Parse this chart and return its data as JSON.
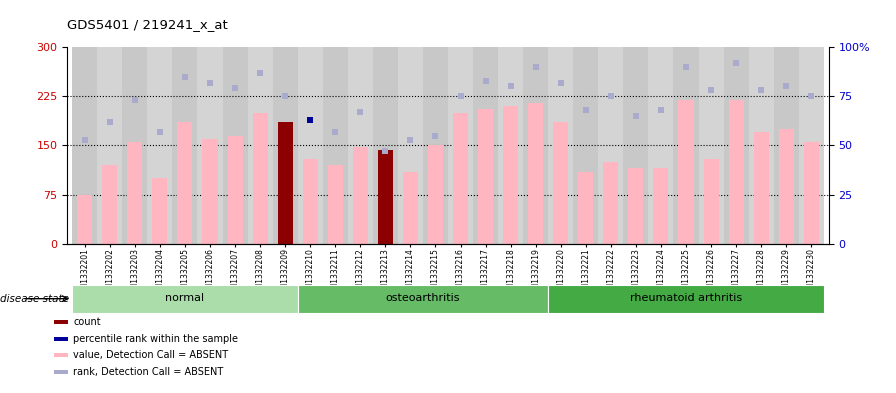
{
  "title": "GDS5401 / 219241_x_at",
  "samples": [
    "GSM1332201",
    "GSM1332202",
    "GSM1332203",
    "GSM1332204",
    "GSM1332205",
    "GSM1332206",
    "GSM1332207",
    "GSM1332208",
    "GSM1332209",
    "GSM1332210",
    "GSM1332211",
    "GSM1332212",
    "GSM1332213",
    "GSM1332214",
    "GSM1332215",
    "GSM1332216",
    "GSM1332217",
    "GSM1332218",
    "GSM1332219",
    "GSM1332220",
    "GSM1332221",
    "GSM1332222",
    "GSM1332223",
    "GSM1332224",
    "GSM1332225",
    "GSM1332226",
    "GSM1332227",
    "GSM1332228",
    "GSM1332229",
    "GSM1332230"
  ],
  "bar_values": [
    75,
    120,
    155,
    100,
    185,
    160,
    165,
    200,
    185,
    130,
    120,
    148,
    143,
    110,
    150,
    200,
    205,
    210,
    215,
    185,
    110,
    125,
    115,
    115,
    220,
    130,
    220,
    170,
    175,
    155
  ],
  "bar_color_types": [
    "absent",
    "absent",
    "absent",
    "absent",
    "absent",
    "absent",
    "absent",
    "absent",
    "count",
    "absent",
    "absent",
    "absent",
    "count",
    "absent",
    "absent",
    "absent",
    "absent",
    "absent",
    "absent",
    "absent",
    "absent",
    "absent",
    "absent",
    "absent",
    "absent",
    "absent",
    "absent",
    "absent",
    "absent",
    "absent"
  ],
  "rank_values": [
    53,
    62,
    73,
    57,
    85,
    82,
    79,
    87,
    75,
    63,
    57,
    67,
    47,
    53,
    55,
    75,
    83,
    80,
    90,
    82,
    68,
    75,
    65,
    68,
    90,
    78,
    92,
    78,
    80,
    75
  ],
  "rank_color_types": [
    "light",
    "light",
    "light",
    "light",
    "light",
    "light",
    "light",
    "light",
    "light",
    "dark",
    "light",
    "light",
    "light",
    "light",
    "light",
    "light",
    "light",
    "light",
    "light",
    "light",
    "light",
    "light",
    "light",
    "light",
    "light",
    "light",
    "light",
    "light",
    "light",
    "light"
  ],
  "groups": [
    {
      "label": "normal",
      "start": 0,
      "end": 9,
      "color": "#aaddaa"
    },
    {
      "label": "osteoarthritis",
      "start": 9,
      "end": 19,
      "color": "#66bb66"
    },
    {
      "label": "rheumatoid arthritis",
      "start": 19,
      "end": 30,
      "color": "#44aa44"
    }
  ],
  "ylim_left": [
    0,
    300
  ],
  "ylim_right": [
    0,
    100
  ],
  "yticks_left": [
    0,
    75,
    150,
    225,
    300
  ],
  "yticks_right": [
    0,
    25,
    50,
    75,
    100
  ],
  "hlines": [
    75,
    150,
    225
  ],
  "bar_color_absent": "#FFB6C1",
  "bar_color_count": "#8B0000",
  "rank_color_light": "#AAAACC",
  "rank_color_dark": "#000099",
  "disease_state_label": "disease state",
  "legend_items": [
    {
      "color": "#8B0000",
      "label": "count"
    },
    {
      "color": "#000099",
      "label": "percentile rank within the sample"
    },
    {
      "color": "#FFB6C1",
      "label": "value, Detection Call = ABSENT"
    },
    {
      "color": "#AAAACC",
      "label": "rank, Detection Call = ABSENT"
    }
  ]
}
